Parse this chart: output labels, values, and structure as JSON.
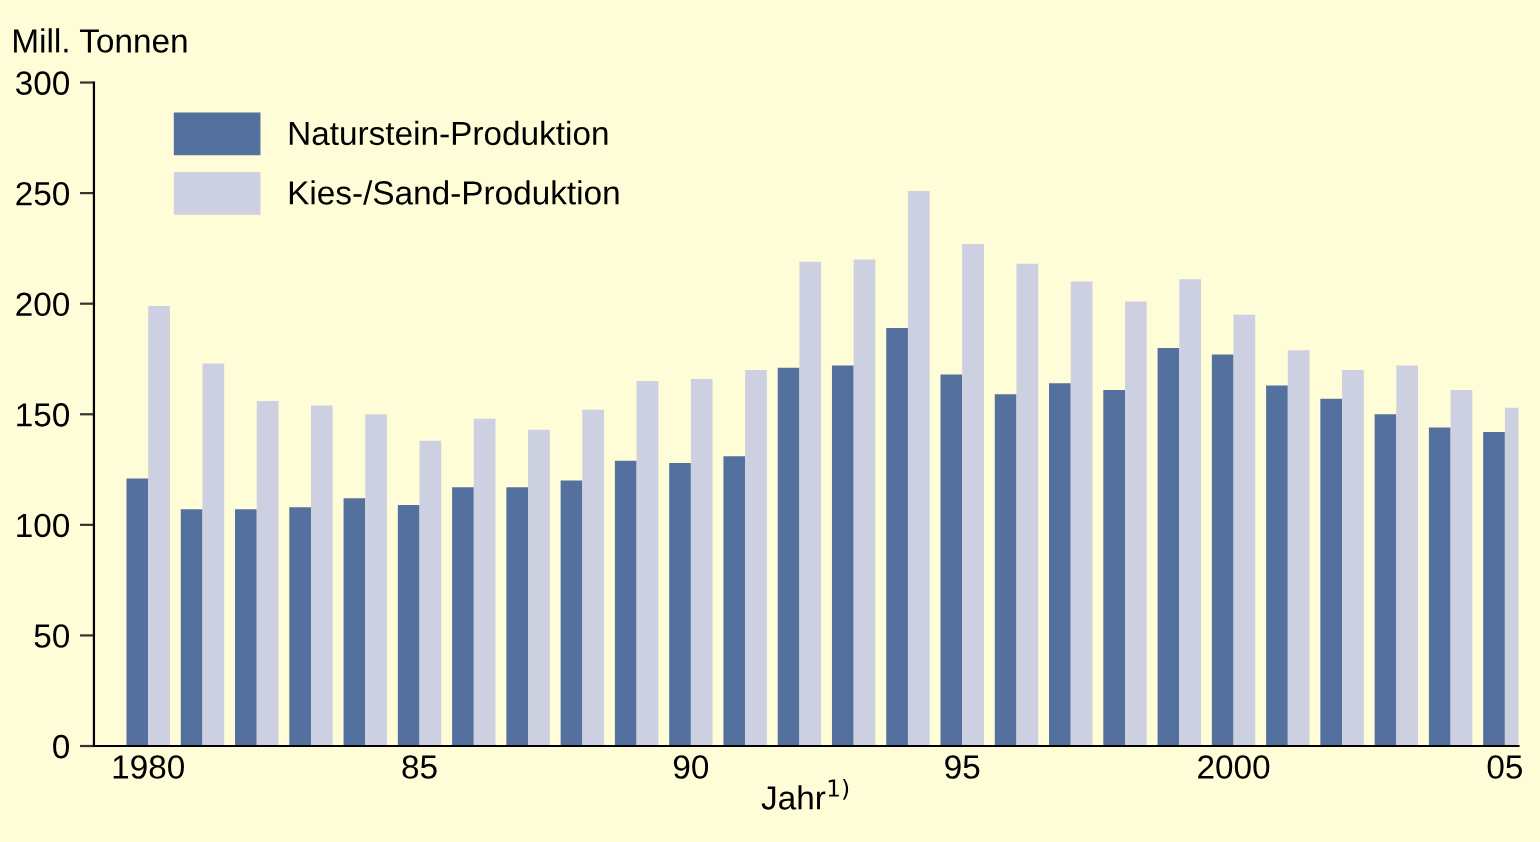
{
  "chart_data": {
    "type": "bar",
    "ylabel": "Mill. Tonnen",
    "xlabel": "Jahr$^{1)}$",
    "x": [
      1980,
      1981,
      1982,
      1983,
      1984,
      1985,
      1986,
      1987,
      1988,
      1989,
      1990,
      1991,
      1992,
      1993,
      1994,
      1995,
      1996,
      1997,
      1998,
      1999,
      2000,
      2001,
      2002,
      2003,
      2004,
      2005
    ],
    "series": [
      {
        "name": "Naturstein-Produktion",
        "color": "#53709f",
        "values": [
          121,
          107,
          107,
          108,
          112,
          109,
          117,
          117,
          120,
          129,
          128,
          131,
          171,
          172,
          189,
          168,
          159,
          164,
          161,
          180,
          177,
          163,
          157,
          150,
          144,
          142
        ]
      },
      {
        "name": "Kies-/Sand-Produktion",
        "color": "#ccd0e0",
        "values": [
          199,
          173,
          156,
          154,
          150,
          138,
          148,
          143,
          152,
          165,
          166,
          170,
          219,
          220,
          251,
          227,
          218,
          210,
          201,
          211,
          195,
          179,
          170,
          172,
          161,
          153
        ]
      }
    ],
    "xlim": [
      1979,
      2005.25
    ],
    "xticks": [
      {
        "value": 1980,
        "label": "1980"
      },
      {
        "value": 1985,
        "label": "85"
      },
      {
        "value": 1990,
        "label": "90"
      },
      {
        "value": 1995,
        "label": "95"
      },
      {
        "value": 2000,
        "label": "2000"
      },
      {
        "value": 2005,
        "label": "05"
      }
    ],
    "ylim": [
      0,
      300
    ],
    "yticks": [
      0,
      50,
      100,
      150,
      200,
      250,
      300
    ],
    "grid": false,
    "legend": "top left"
  }
}
